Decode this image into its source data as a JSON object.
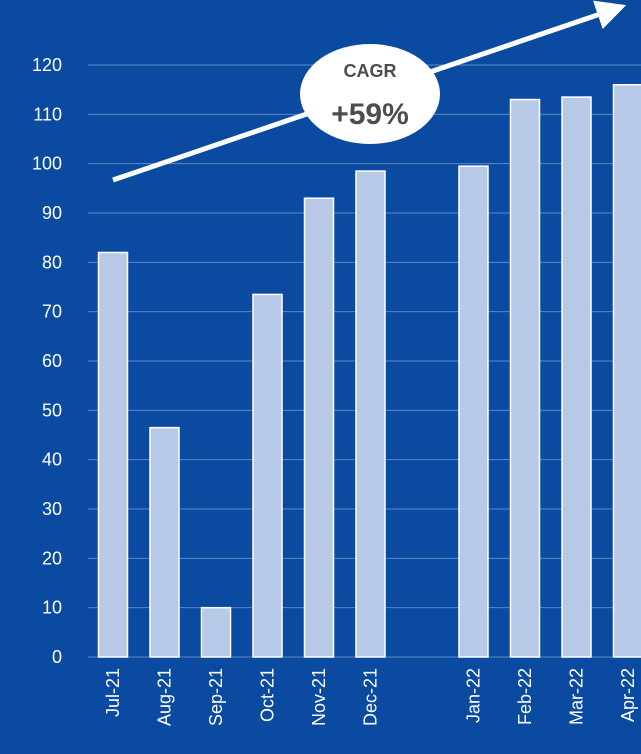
{
  "chart_data": {
    "type": "bar",
    "categories": [
      "Jul-21",
      "Aug-21",
      "Sep-21",
      "Oct-21",
      "Nov-21",
      "Dec-21",
      "",
      "Jan-22",
      "Feb-22",
      "Mar-22",
      "Apr-22"
    ],
    "values": [
      82,
      46.5,
      10,
      73.5,
      93,
      98.5,
      null,
      99.5,
      113,
      113.5,
      116
    ],
    "ylim": [
      0,
      120
    ],
    "yticks": [
      0,
      10,
      20,
      30,
      40,
      50,
      60,
      70,
      80,
      90,
      100,
      110,
      120
    ],
    "grid": true,
    "annotation": {
      "title": "CAGR",
      "value": "+59%"
    }
  },
  "colors": {
    "background": "#0a4aa0",
    "bar_fill": "#b8c9e8",
    "bar_stroke": "#ffffff",
    "grid": "#5f86c4",
    "text": "#ffffff",
    "badge_fill": "#ffffff",
    "badge_text": "#4d4d4d"
  }
}
